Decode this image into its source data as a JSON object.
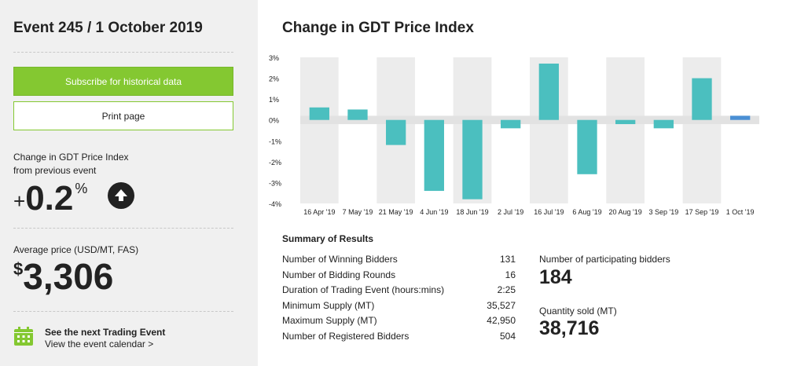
{
  "sidebar": {
    "event_title": "Event 245 / 1 October 2019",
    "subscribe_label": "Subscribe for historical data",
    "print_label": "Print page",
    "change_label_line1": "Change in GDT Price Index",
    "change_label_line2": "from previous event",
    "change_sign": "+",
    "change_value": "0.2",
    "change_unit": "%",
    "change_direction_icon": "arrow-up-icon",
    "avg_price_label": "Average price (USD/MT, FAS)",
    "avg_price_currency": "$",
    "avg_price_value": "3,306",
    "next_event_icon": "calendar-icon",
    "next_event_title": "See the next Trading Event",
    "next_event_link": "View the event calendar >"
  },
  "colors": {
    "sidebar_bg": "#f0f0f0",
    "accent_green": "#84c831",
    "bar_teal": "#4bbfbf",
    "bar_latest": "#4a8fd4"
  },
  "chart_data": {
    "type": "bar",
    "title": "Change in GDT Price Index",
    "categories": [
      "16 Apr '19",
      "7 May '19",
      "21 May '19",
      "4 Jun '19",
      "18 Jun '19",
      "2 Jul '19",
      "16 Jul '19",
      "6 Aug '19",
      "20 Aug '19",
      "3 Sep '19",
      "17 Sep '19",
      "1 Oct '19"
    ],
    "values": [
      0.6,
      0.5,
      -1.2,
      -3.4,
      -3.8,
      -0.4,
      2.7,
      -2.6,
      -0.2,
      -0.4,
      2.0,
      0.2
    ],
    "ylim": [
      -4,
      3
    ],
    "yticks": [
      3,
      2,
      1,
      0,
      -1,
      -2,
      -3,
      -4
    ],
    "ytick_labels": [
      "3%",
      "2%",
      "1%",
      "0%",
      "-1%",
      "-2%",
      "-3%",
      "-4%"
    ],
    "xlabel": "",
    "ylabel": "",
    "highlight_last": true
  },
  "summary": {
    "title": "Summary of Results",
    "rows": [
      {
        "label": "Number of Winning Bidders",
        "value": "131"
      },
      {
        "label": "Number of Bidding Rounds",
        "value": "16"
      },
      {
        "label": "Duration of Trading Event (hours:mins)",
        "value": "2:25"
      },
      {
        "label": "Minimum Supply (MT)",
        "value": "35,527"
      },
      {
        "label": "Maximum Supply (MT)",
        "value": "42,950"
      },
      {
        "label": "Number of Registered Bidders",
        "value": "504"
      }
    ],
    "participating_label": "Number of participating bidders",
    "participating_value": "184",
    "quantity_label": "Quantity sold (MT)",
    "quantity_value": "38,716"
  }
}
